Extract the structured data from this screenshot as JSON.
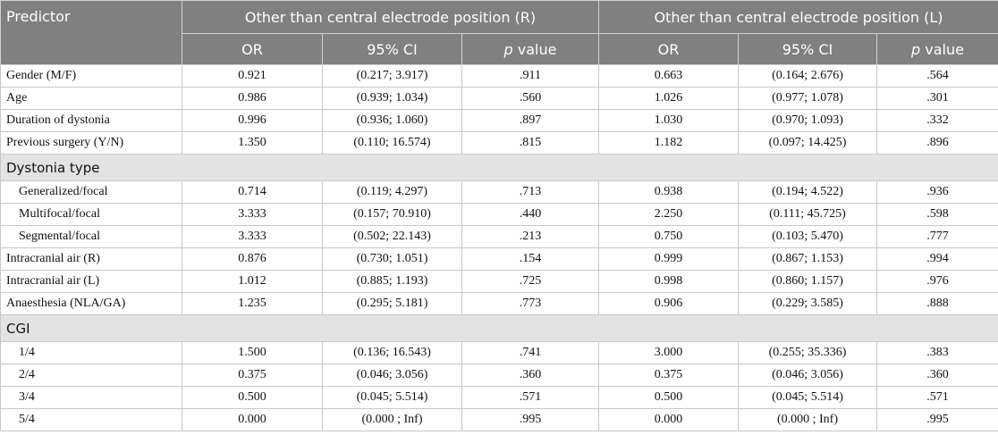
{
  "table": {
    "header": {
      "predictor": "Predictor",
      "groups": [
        "Other than central electrode position (R)",
        "Other than central electrode position (L)"
      ],
      "columns": [
        "OR",
        "95% CI",
        "p value",
        "OR",
        "95% CI",
        "p value"
      ]
    },
    "rows": [
      {
        "cells": [
          "Gender (M/F)",
          "0.921",
          "(0.217; 3.917)",
          ".911",
          "0.663",
          "(0.164; 2.676)",
          ".564"
        ]
      },
      {
        "cells": [
          "Age",
          "0.986",
          "(0.939; 1.034)",
          ".560",
          "1.026",
          "(0.977; 1.078)",
          ".301"
        ]
      },
      {
        "cells": [
          "Duration of dystonia",
          "0.996",
          "(0.936; 1.060)",
          ".897",
          "1.030",
          "(0.970; 1.093)",
          ".332"
        ]
      },
      {
        "cells": [
          "Previous surgery (Y/N)",
          "1.350",
          "(0.110; 16.574)",
          ".815",
          "1.182",
          "(0.097; 14.425)",
          ".896"
        ]
      },
      {
        "section": "Dystonia type"
      },
      {
        "indent": true,
        "cells": [
          "Generalized/focal",
          "0.714",
          "(0.119; 4.297)",
          ".713",
          "0.938",
          "(0.194; 4.522)",
          ".936"
        ]
      },
      {
        "indent": true,
        "cells": [
          "Multifocal/focal",
          "3.333",
          "(0.157; 70.910)",
          ".440",
          "2.250",
          "(0.111; 45.725)",
          ".598"
        ]
      },
      {
        "indent": true,
        "cells": [
          "Segmental/focal",
          "3.333",
          "(0.502; 22.143)",
          ".213",
          "0.750",
          "(0.103; 5.470)",
          ".777"
        ]
      },
      {
        "cells": [
          "Intracranial air (R)",
          "0.876",
          "(0.730; 1.051)",
          ".154",
          "0.999",
          "(0.867; 1.153)",
          ".994"
        ]
      },
      {
        "cells": [
          "Intracranial air (L)",
          "1.012",
          "(0.885; 1.193)",
          ".725",
          "0.998",
          "(0.860; 1.157)",
          ".976"
        ]
      },
      {
        "cells": [
          "Anaesthesia (NLA/GA)",
          "1.235",
          "(0.295; 5.181)",
          ".773",
          "0.906",
          "(0.229; 3.585)",
          ".888"
        ]
      },
      {
        "section": "CGI"
      },
      {
        "indent": true,
        "cells": [
          "1/4",
          "1.500",
          "(0.136; 16.543)",
          ".741",
          "3.000",
          "(0.255; 35.336)",
          ".383"
        ]
      },
      {
        "indent": true,
        "cells": [
          "2/4",
          "0.375",
          "(0.046; 3.056)",
          ".360",
          "0.375",
          "(0.046; 3.056)",
          ".360"
        ]
      },
      {
        "indent": true,
        "cells": [
          "3/4",
          "0.500",
          "(0.045; 5.514)",
          ".571",
          "0.500",
          "(0.045; 5.514)",
          ".571"
        ]
      },
      {
        "indent": true,
        "cells": [
          "5/4",
          "0.000",
          "(0.000 ; Inf)",
          ".995",
          "0.000",
          "(0.000 ; Inf)",
          ".995"
        ]
      }
    ]
  }
}
